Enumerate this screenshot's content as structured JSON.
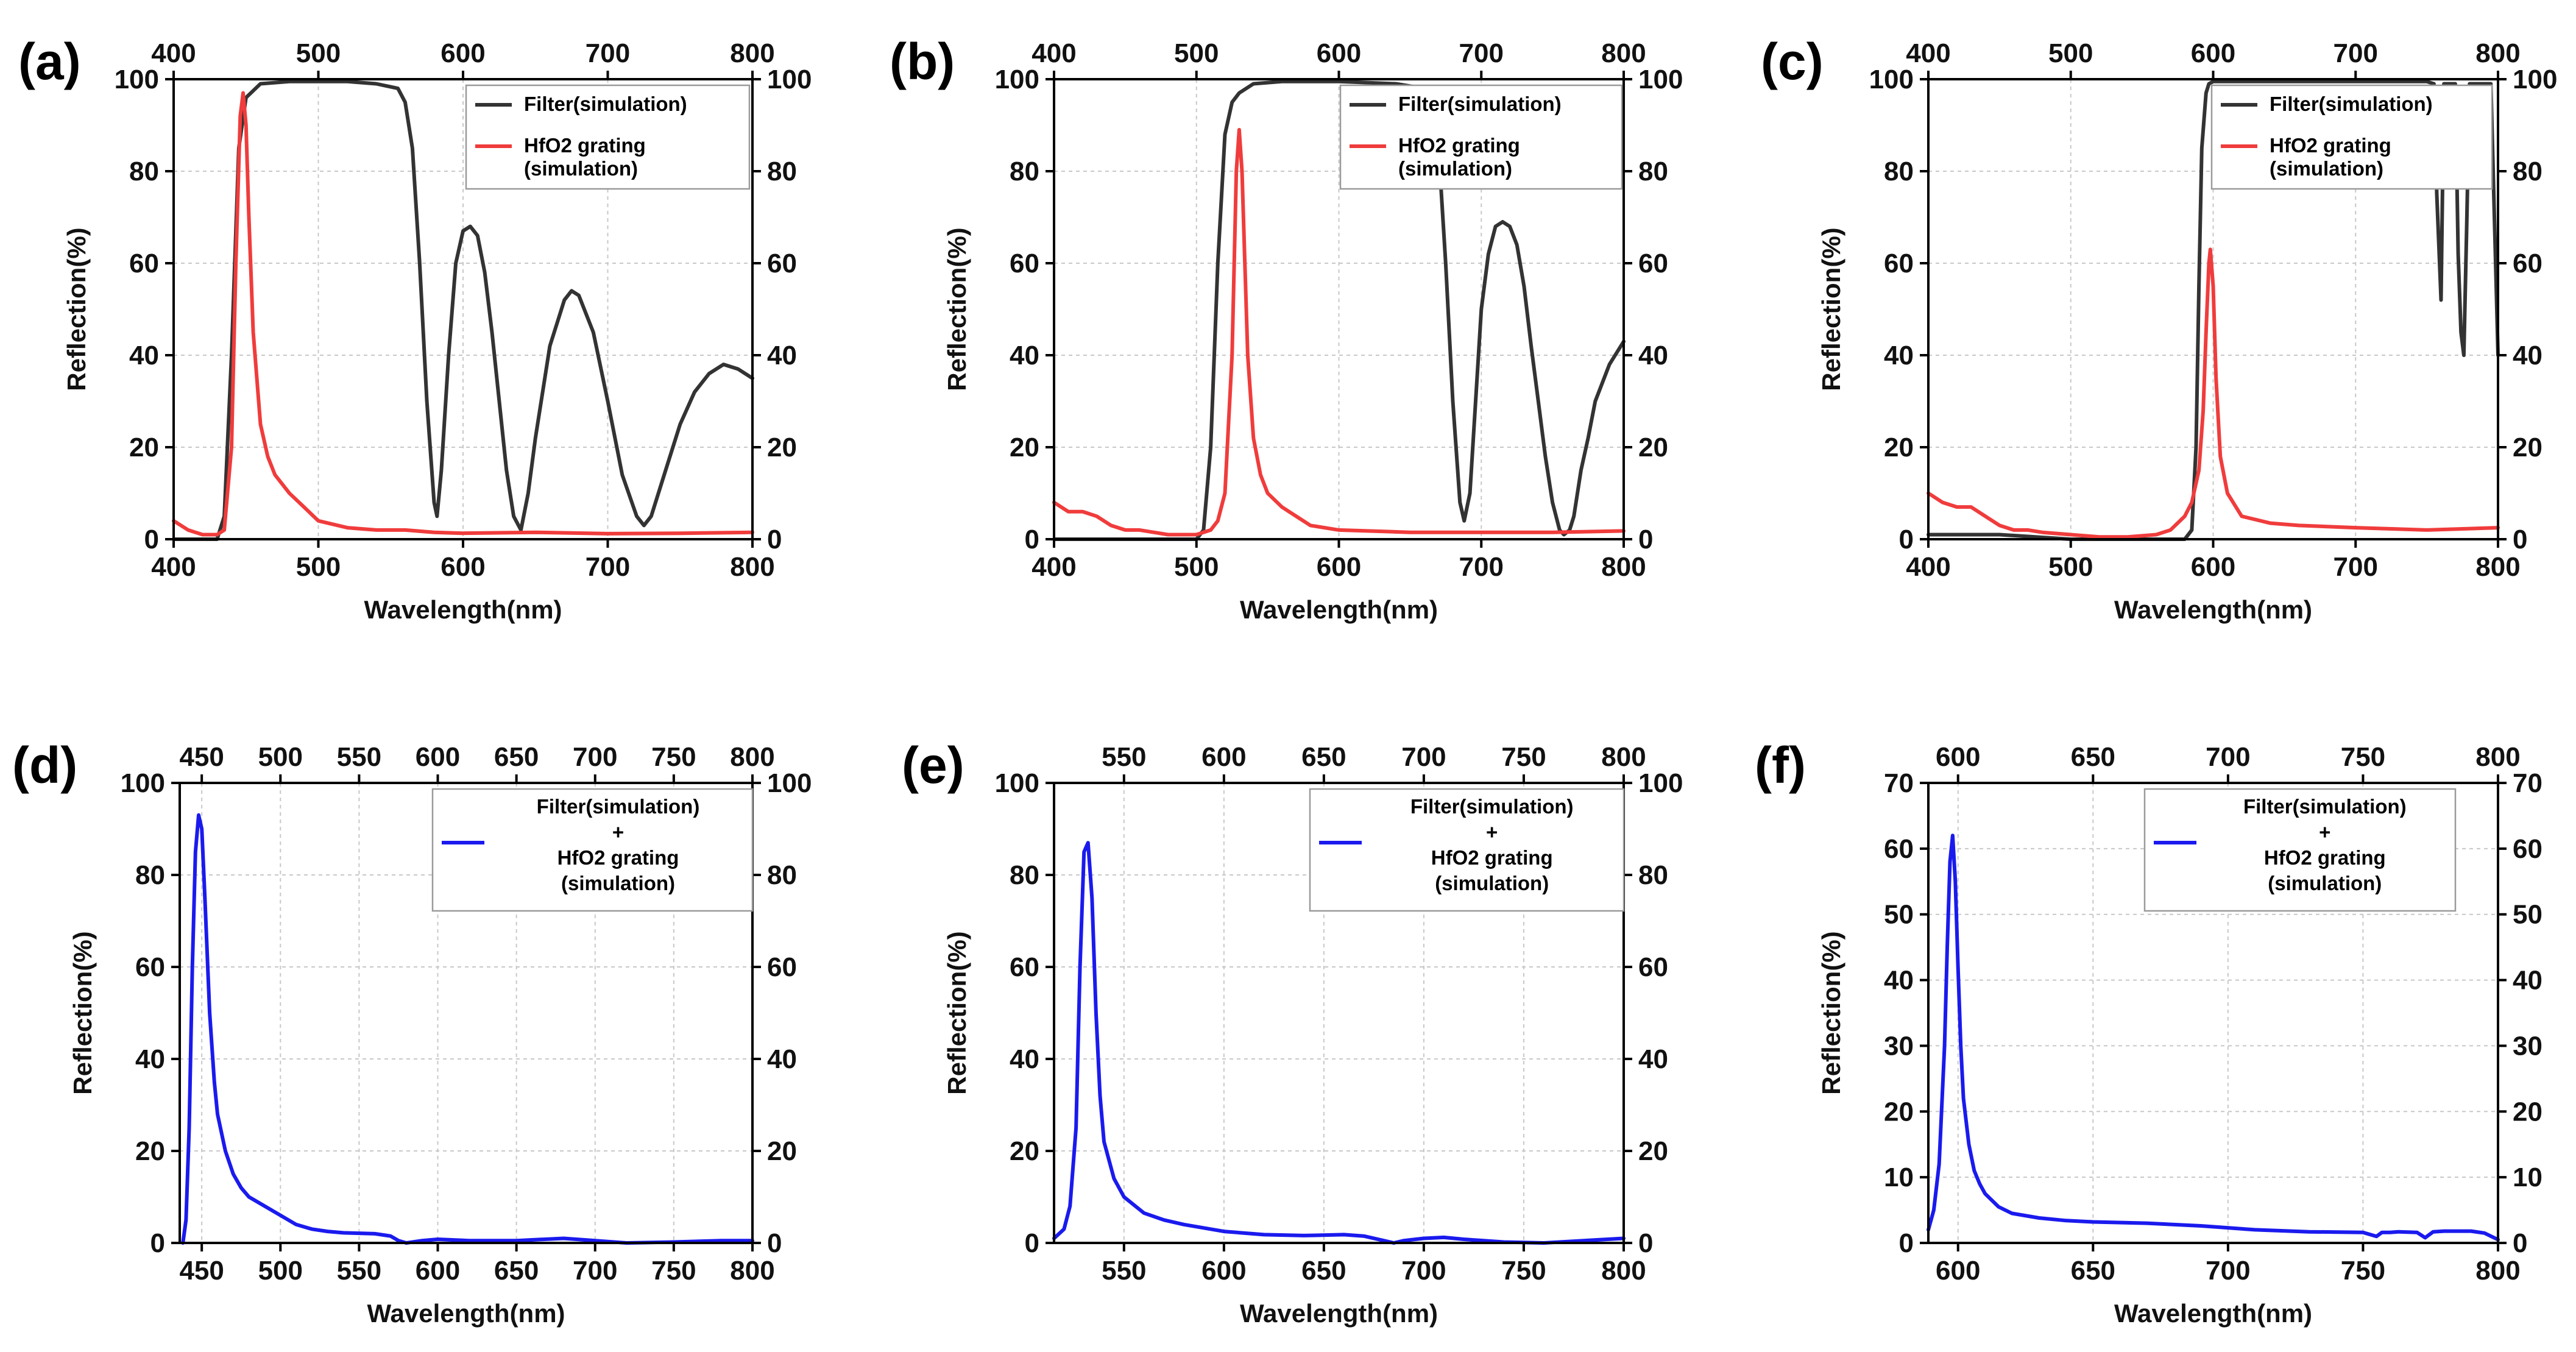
{
  "chart_data": [
    {
      "panel": "(a)",
      "type": "line",
      "xlabel": "Wavelength(nm)",
      "ylabel": "Reflection(%)",
      "xlim": [
        400,
        800
      ],
      "ylim": [
        0,
        100
      ],
      "xticks": [
        400,
        500,
        600,
        700,
        800
      ],
      "yticks": [
        0,
        20,
        40,
        60,
        80,
        100
      ],
      "legend": [
        {
          "label": "Filter(simulation)",
          "color": "#333333"
        },
        {
          "label": "HfO2 grating\n(simulation)",
          "color": "#f03c3c"
        }
      ],
      "series": [
        {
          "name": "Filter(simulation)",
          "color": "#333333",
          "x": [
            400,
            410,
            420,
            430,
            435,
            440,
            445,
            450,
            460,
            480,
            500,
            520,
            540,
            555,
            560,
            565,
            570,
            575,
            580,
            582,
            585,
            590,
            595,
            600,
            605,
            610,
            615,
            620,
            625,
            630,
            635,
            640,
            645,
            650,
            660,
            670,
            675,
            680,
            690,
            700,
            710,
            720,
            725,
            730,
            740,
            750,
            760,
            770,
            780,
            790,
            800
          ],
          "y": [
            0,
            0,
            0,
            0,
            5,
            40,
            85,
            96,
            99,
            99.5,
            99.5,
            99.5,
            99,
            98,
            95,
            85,
            60,
            30,
            8,
            5,
            15,
            40,
            60,
            67,
            68,
            66,
            58,
            45,
            30,
            15,
            5,
            2,
            10,
            22,
            42,
            52,
            54,
            53,
            45,
            30,
            14,
            5,
            3,
            5,
            15,
            25,
            32,
            36,
            38,
            37,
            35
          ]
        },
        {
          "name": "HfO2 grating (simulation)",
          "color": "#f03c3c",
          "x": [
            400,
            410,
            420,
            425,
            430,
            435,
            440,
            443,
            446,
            448,
            450,
            452,
            455,
            460,
            465,
            470,
            480,
            490,
            500,
            520,
            540,
            560,
            580,
            600,
            650,
            700,
            750,
            800
          ],
          "y": [
            4,
            2,
            1,
            1,
            1,
            2,
            20,
            60,
            92,
            97,
            90,
            70,
            45,
            25,
            18,
            14,
            10,
            7,
            4,
            2.5,
            2,
            2,
            1.5,
            1.3,
            1.5,
            1.2,
            1.3,
            1.5
          ]
        }
      ]
    },
    {
      "panel": "(b)",
      "type": "line",
      "xlabel": "Wavelength(nm)",
      "ylabel": "Reflection(%)",
      "xlim": [
        400,
        800
      ],
      "ylim": [
        0,
        100
      ],
      "xticks": [
        400,
        500,
        600,
        700,
        800
      ],
      "yticks": [
        0,
        20,
        40,
        60,
        80,
        100
      ],
      "legend": [
        {
          "label": "Filter(simulation)",
          "color": "#333333"
        },
        {
          "label": "HfO2 grating\n(simulation)",
          "color": "#f03c3c"
        }
      ],
      "series": [
        {
          "name": "Filter(simulation)",
          "color": "#333333",
          "x": [
            400,
            450,
            490,
            500,
            505,
            510,
            515,
            520,
            525,
            530,
            540,
            560,
            600,
            640,
            660,
            665,
            670,
            675,
            680,
            685,
            688,
            692,
            695,
            700,
            705,
            710,
            715,
            720,
            725,
            730,
            735,
            740,
            745,
            750,
            755,
            758,
            762,
            765,
            770,
            775,
            780,
            790,
            800
          ],
          "y": [
            0,
            0,
            0,
            0,
            2,
            20,
            60,
            88,
            95,
            97,
            99,
            99.5,
            99.5,
            99,
            98,
            95,
            85,
            60,
            30,
            8,
            4,
            10,
            25,
            50,
            62,
            68,
            69,
            68,
            64,
            55,
            42,
            30,
            18,
            8,
            2,
            1,
            2,
            5,
            15,
            22,
            30,
            38,
            43
          ]
        },
        {
          "name": "HfO2 grating (simulation)",
          "color": "#f03c3c",
          "x": [
            400,
            410,
            420,
            430,
            440,
            450,
            460,
            470,
            480,
            490,
            500,
            510,
            515,
            520,
            525,
            528,
            530,
            532,
            534,
            536,
            540,
            545,
            550,
            560,
            570,
            580,
            600,
            650,
            700,
            750,
            800
          ],
          "y": [
            8,
            6,
            6,
            5,
            3,
            2,
            2,
            1.5,
            1,
            1,
            1,
            2,
            4,
            10,
            40,
            80,
            89,
            80,
            60,
            40,
            22,
            14,
            10,
            7,
            5,
            3,
            2,
            1.5,
            1.5,
            1.5,
            1.8
          ]
        }
      ]
    },
    {
      "panel": "(c)",
      "type": "line",
      "xlabel": "Wavelength(nm)",
      "ylabel": "Reflection(%)",
      "xlim": [
        400,
        800
      ],
      "ylim": [
        0,
        100
      ],
      "xticks": [
        400,
        500,
        600,
        700,
        800
      ],
      "yticks": [
        0,
        20,
        40,
        60,
        80,
        100
      ],
      "legend": [
        {
          "label": "Filter(simulation)",
          "color": "#333333"
        },
        {
          "label": "HfO2 grating\n(simulation)",
          "color": "#f03c3c"
        }
      ],
      "series": [
        {
          "name": "Filter(simulation)",
          "color": "#333333",
          "x": [
            400,
            450,
            500,
            550,
            570,
            580,
            585,
            588,
            590,
            592,
            595,
            597,
            600,
            620,
            650,
            700,
            750,
            755,
            757,
            760,
            762,
            765,
            770,
            772,
            774,
            776,
            778,
            780,
            785,
            790,
            795,
            800
          ],
          "y": [
            1,
            1,
            0,
            0,
            0,
            0,
            2,
            20,
            55,
            85,
            97,
            99,
            99.5,
            99.5,
            99.5,
            99.5,
            99.5,
            99,
            75,
            52,
            99,
            99,
            99,
            62,
            45,
            40,
            68,
            99,
            99,
            99,
            99,
            40
          ]
        },
        {
          "name": "HfO2 grating (simulation)",
          "color": "#f03c3c",
          "x": [
            400,
            410,
            420,
            430,
            440,
            450,
            460,
            470,
            480,
            500,
            520,
            540,
            560,
            570,
            580,
            585,
            590,
            593,
            595,
            597,
            598,
            600,
            602,
            605,
            610,
            620,
            640,
            660,
            700,
            750,
            800
          ],
          "y": [
            10,
            8,
            7,
            7,
            5,
            3,
            2,
            2,
            1.5,
            1,
            0.5,
            0.5,
            1,
            2,
            5,
            8,
            15,
            28,
            45,
            60,
            63,
            55,
            35,
            18,
            10,
            5,
            3.5,
            3,
            2.5,
            2,
            2.5
          ]
        }
      ]
    },
    {
      "panel": "(d)",
      "type": "line",
      "xlabel": "Wavelength(nm)",
      "ylabel": "Reflection(%)",
      "xlim": [
        436,
        800
      ],
      "ylim": [
        0,
        100
      ],
      "xticks": [
        450,
        500,
        550,
        600,
        650,
        700,
        750,
        800
      ],
      "yticks": [
        0,
        20,
        40,
        60,
        80,
        100
      ],
      "legend": [
        {
          "label": "Filter(simulation)\n+\nHfO2 grating\n(simulation)",
          "color": "#1a1aee"
        }
      ],
      "series": [
        {
          "name": "Filter(simulation) + HfO2 grating (simulation)",
          "color": "#1a1aee",
          "x": [
            438,
            440,
            442,
            444,
            446,
            448,
            450,
            452,
            455,
            458,
            460,
            465,
            470,
            475,
            480,
            490,
            500,
            510,
            520,
            530,
            540,
            560,
            570,
            575,
            580,
            590,
            600,
            620,
            650,
            680,
            700,
            720,
            750,
            780,
            800
          ],
          "y": [
            0,
            5,
            25,
            60,
            85,
            93,
            90,
            75,
            50,
            35,
            28,
            20,
            15,
            12,
            10,
            8,
            6,
            4,
            3,
            2.5,
            2.2,
            2,
            1.5,
            0.5,
            0,
            0.5,
            0.8,
            0.5,
            0.5,
            1,
            0.5,
            0,
            0.2,
            0.5,
            0.5
          ]
        }
      ]
    },
    {
      "panel": "(e)",
      "type": "line",
      "xlabel": "Wavelength(nm)",
      "ylabel": "Reflection(%)",
      "xlim": [
        515,
        800
      ],
      "ylim": [
        0,
        100
      ],
      "xticks": [
        550,
        600,
        650,
        700,
        750,
        800
      ],
      "yticks": [
        0,
        20,
        40,
        60,
        80,
        100
      ],
      "legend": [
        {
          "label": "Filter(simulation)\n+\nHfO2 grating\n(simulation)",
          "color": "#1a1aee"
        }
      ],
      "series": [
        {
          "name": "Filter(simulation) + HfO2 grating (simulation)",
          "color": "#1a1aee",
          "x": [
            515,
            520,
            523,
            526,
            528,
            530,
            532,
            534,
            536,
            538,
            540,
            545,
            550,
            560,
            570,
            580,
            600,
            620,
            640,
            660,
            670,
            680,
            685,
            690,
            700,
            710,
            720,
            740,
            760,
            780,
            800
          ],
          "y": [
            1,
            3,
            8,
            25,
            60,
            85,
            87,
            75,
            50,
            32,
            22,
            14,
            10,
            6.5,
            5,
            4,
            2.5,
            1.8,
            1.6,
            1.8,
            1.5,
            0.5,
            0,
            0.5,
            1,
            1.2,
            0.8,
            0.2,
            0,
            0.5,
            1
          ]
        }
      ]
    },
    {
      "panel": "(f)",
      "type": "line",
      "xlabel": "Wavelength(nm)",
      "ylabel": "Reflection(%)",
      "xlim": [
        589,
        800
      ],
      "ylim": [
        0,
        70
      ],
      "xticks": [
        600,
        650,
        700,
        750,
        800
      ],
      "yticks": [
        0,
        10,
        20,
        30,
        40,
        50,
        60,
        70
      ],
      "legend": [
        {
          "label": "Filter(simulation)\n+\nHfO2 grating\n(simulation)",
          "color": "#1a1aee"
        }
      ],
      "series": [
        {
          "name": "Filter(simulation) + HfO2 grating (simulation)",
          "color": "#1a1aee",
          "x": [
            589,
            591,
            593,
            595,
            596,
            597,
            598,
            599,
            600,
            601,
            602,
            604,
            606,
            608,
            610,
            615,
            620,
            630,
            640,
            650,
            670,
            690,
            710,
            730,
            750,
            755,
            757,
            760,
            763,
            770,
            773,
            776,
            780,
            790,
            795,
            800
          ],
          "y": [
            2,
            5,
            12,
            30,
            45,
            58,
            62,
            55,
            42,
            30,
            22,
            15,
            11,
            9,
            7.5,
            5.5,
            4.5,
            3.8,
            3.4,
            3.2,
            3,
            2.6,
            2,
            1.7,
            1.6,
            1,
            1.6,
            1.6,
            1.7,
            1.6,
            0.8,
            1.7,
            1.8,
            1.8,
            1.5,
            0.5
          ]
        }
      ]
    }
  ]
}
